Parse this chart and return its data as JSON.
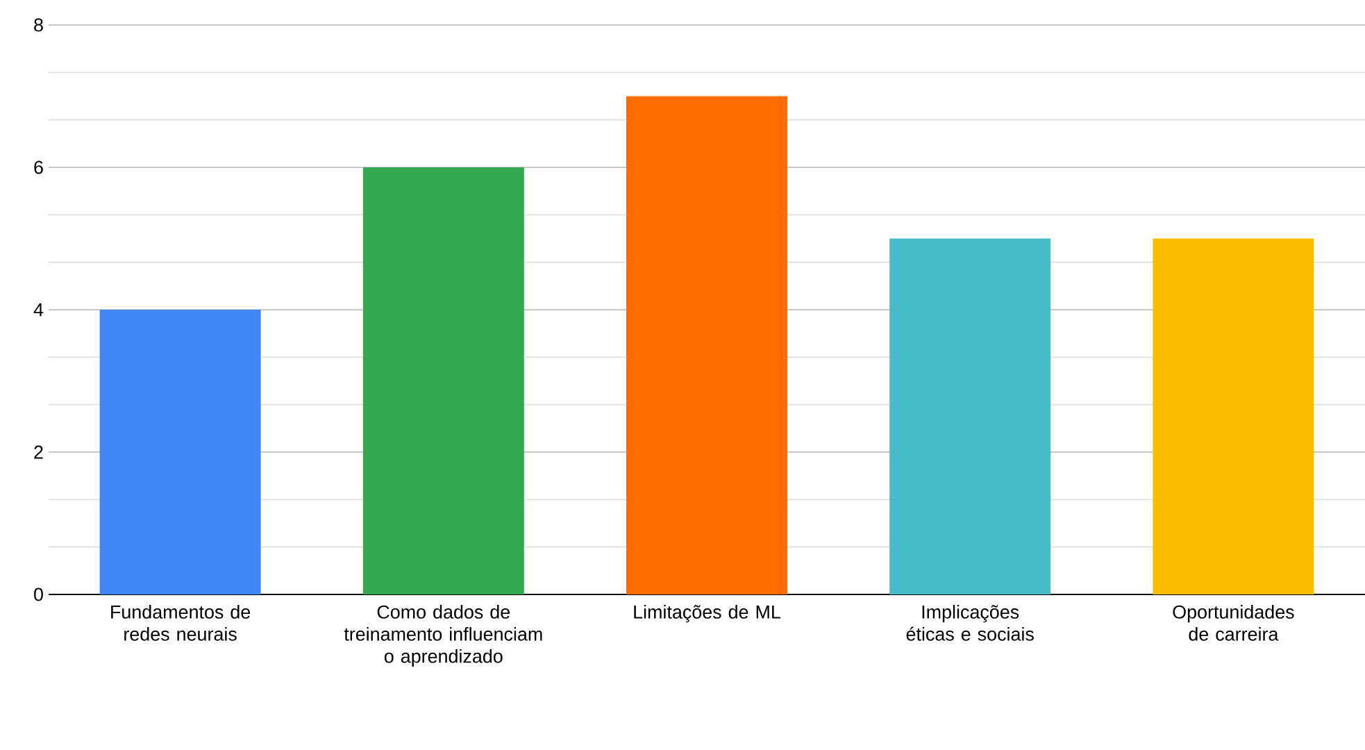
{
  "chart_data": {
    "type": "bar",
    "categories": [
      "Fundamentos de redes neurais",
      "Como dados de treinamento influenciam o aprendizado",
      "Limitações de ML",
      "Implicações éticas e sociais",
      "Oportunidades de carreira"
    ],
    "values": [
      4,
      6,
      7,
      5,
      5
    ],
    "colors": [
      "#4285f4",
      "#34a853",
      "#ff6d01",
      "#46bdc6",
      "#fbbc04"
    ],
    "ylim": [
      0,
      8
    ],
    "yticks": [
      0,
      2,
      4,
      6,
      8
    ],
    "grid": "y"
  }
}
